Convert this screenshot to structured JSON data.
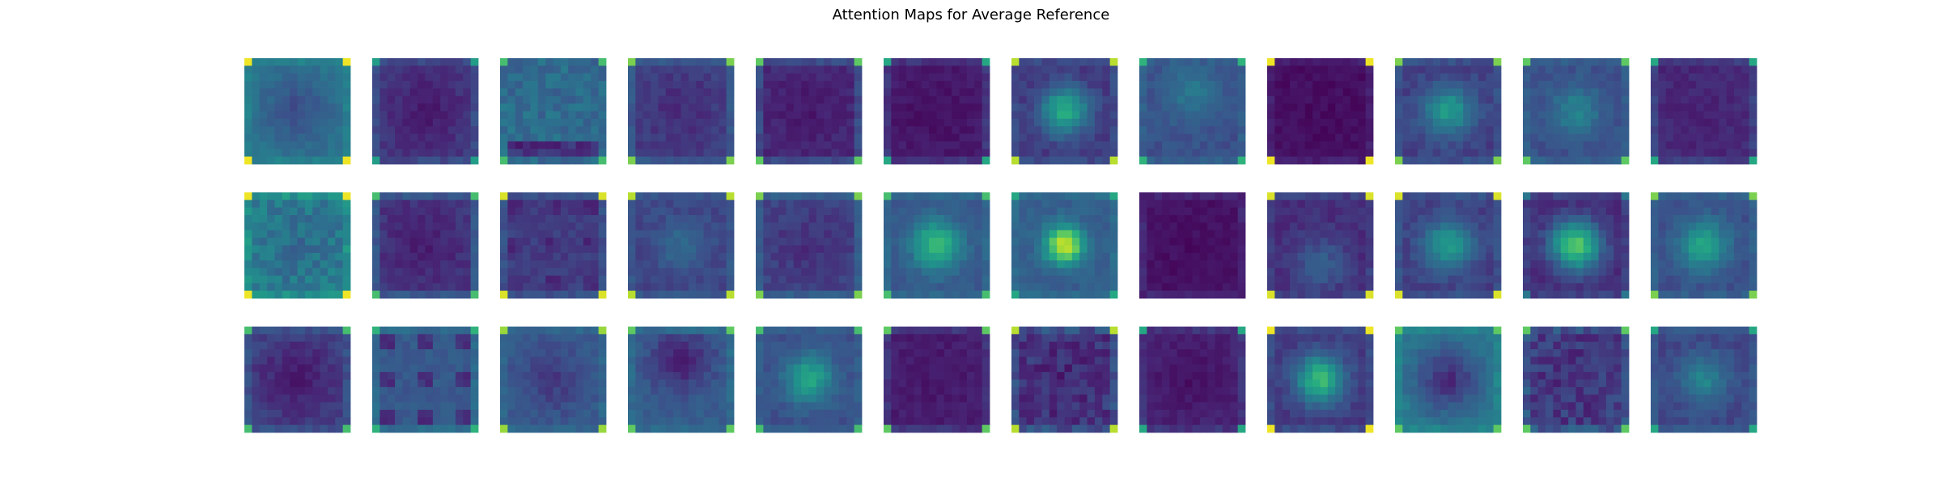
{
  "title": "Attention Maps for Average Reference",
  "chart_data": {
    "type": "heatmap",
    "title": "Attention Maps for Average Reference",
    "rows": 3,
    "cols": 12,
    "map_size": [
      14,
      14
    ],
    "colormap": "viridis",
    "axes_visible": false,
    "panels": [
      [
        {
          "pattern": "center-dark",
          "center": 0.22,
          "edge": 0.38,
          "corners": 0.98
        },
        {
          "pattern": "center-dark",
          "center": 0.08,
          "edge": 0.18,
          "corners": 0.55
        },
        {
          "pattern": "noisy-band",
          "center": 0.3,
          "edge": 0.3,
          "corners": 0.7
        },
        {
          "pattern": "flat",
          "center": 0.15,
          "edge": 0.22,
          "corners": 0.8
        },
        {
          "pattern": "flat",
          "center": 0.08,
          "edge": 0.18,
          "corners": 0.75
        },
        {
          "pattern": "flat",
          "center": 0.05,
          "edge": 0.12,
          "corners": 0.6
        },
        {
          "pattern": "blob",
          "center": 0.62,
          "edge": 0.18,
          "corners": 0.9
        },
        {
          "pattern": "upper-blob",
          "center": 0.4,
          "edge": 0.25,
          "corners": 0.65
        },
        {
          "pattern": "flat",
          "center": 0.04,
          "edge": 0.06,
          "corners": 0.98
        },
        {
          "pattern": "blob",
          "center": 0.55,
          "edge": 0.2,
          "corners": 0.8
        },
        {
          "pattern": "blob",
          "center": 0.45,
          "edge": 0.25,
          "corners": 0.75
        },
        {
          "pattern": "flat",
          "center": 0.12,
          "edge": 0.15,
          "corners": 0.6
        }
      ],
      [
        {
          "pattern": "noisy",
          "center": 0.35,
          "edge": 0.45,
          "corners": 0.98
        },
        {
          "pattern": "flat",
          "center": 0.1,
          "edge": 0.22,
          "corners": 0.7
        },
        {
          "pattern": "grid",
          "center": 0.12,
          "edge": 0.2,
          "corners": 0.95
        },
        {
          "pattern": "blob",
          "center": 0.35,
          "edge": 0.22,
          "corners": 0.9
        },
        {
          "pattern": "flat",
          "center": 0.15,
          "edge": 0.25,
          "corners": 0.8
        },
        {
          "pattern": "blob",
          "center": 0.68,
          "edge": 0.28,
          "corners": 0.7
        },
        {
          "pattern": "hot-blob",
          "center": 0.95,
          "edge": 0.3,
          "corners": 0.6
        },
        {
          "pattern": "flat",
          "center": 0.04,
          "edge": 0.08,
          "corners": 0.1
        },
        {
          "pattern": "lower-blob",
          "center": 0.3,
          "edge": 0.15,
          "corners": 0.95
        },
        {
          "pattern": "blob",
          "center": 0.55,
          "edge": 0.2,
          "corners": 0.95
        },
        {
          "pattern": "blob",
          "center": 0.75,
          "edge": 0.15,
          "corners": 0.4
        },
        {
          "pattern": "blob",
          "center": 0.6,
          "edge": 0.25,
          "corners": 0.8
        }
      ],
      [
        {
          "pattern": "center-dark",
          "center": 0.08,
          "edge": 0.2,
          "corners": 0.7
        },
        {
          "pattern": "grid",
          "center": 0.1,
          "edge": 0.3,
          "corners": 0.65
        },
        {
          "pattern": "center-dark",
          "center": 0.18,
          "edge": 0.28,
          "corners": 0.85
        },
        {
          "pattern": "upper-dark",
          "center": 0.12,
          "edge": 0.3,
          "corners": 0.75
        },
        {
          "pattern": "blob",
          "center": 0.6,
          "edge": 0.25,
          "corners": 0.7
        },
        {
          "pattern": "flat",
          "center": 0.08,
          "edge": 0.12,
          "corners": 0.75
        },
        {
          "pattern": "noisy",
          "center": 0.12,
          "edge": 0.2,
          "corners": 0.9
        },
        {
          "pattern": "center-dark",
          "center": 0.05,
          "edge": 0.12,
          "corners": 0.6
        },
        {
          "pattern": "blob",
          "center": 0.68,
          "edge": 0.18,
          "corners": 0.98
        },
        {
          "pattern": "center-dark",
          "center": 0.12,
          "edge": 0.4,
          "corners": 0.75
        },
        {
          "pattern": "noisy",
          "center": 0.15,
          "edge": 0.22,
          "corners": 0.75
        },
        {
          "pattern": "blob",
          "center": 0.45,
          "edge": 0.22,
          "corners": 0.6
        }
      ]
    ]
  }
}
